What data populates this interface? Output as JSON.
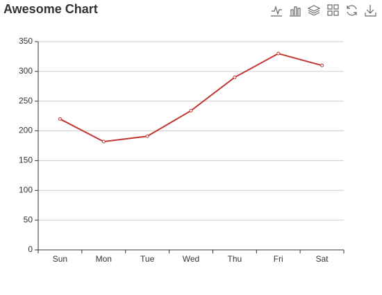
{
  "chart_data": {
    "type": "line",
    "title": "Awesome Chart",
    "categories": [
      "Sun",
      "Mon",
      "Tue",
      "Wed",
      "Thu",
      "Fri",
      "Sat"
    ],
    "values": [
      220,
      182,
      191,
      234,
      290,
      330,
      310
    ],
    "color": "#c23531",
    "ylim": [
      0,
      350
    ],
    "yticks": [
      0,
      50,
      100,
      150,
      200,
      250,
      300,
      350
    ],
    "grid": true
  }
}
